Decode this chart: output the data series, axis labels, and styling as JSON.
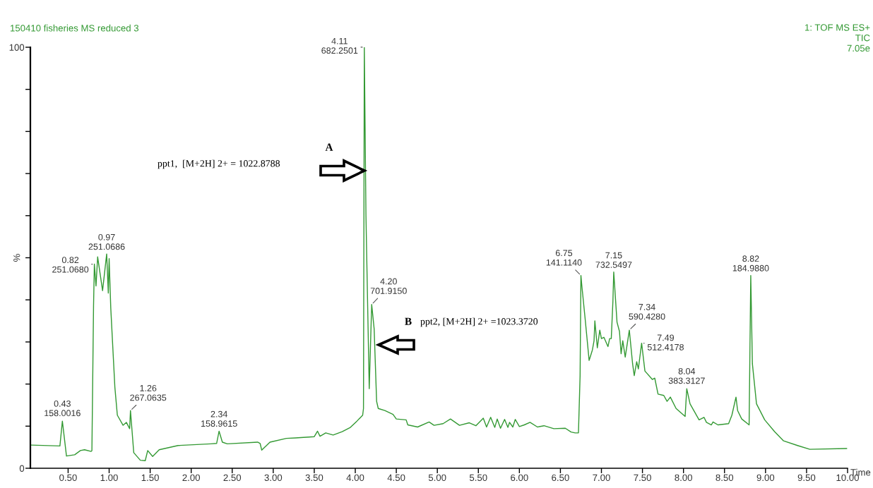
{
  "chart_data": {
    "type": "line",
    "title": "150410 fisheries MS reduced 3",
    "xlabel": "Time",
    "ylabel": "%",
    "x": [
      0.05,
      0.4,
      0.43,
      0.48,
      0.58,
      0.65,
      0.7,
      0.78,
      0.79,
      0.81,
      0.82,
      0.84,
      0.86,
      0.92,
      0.97,
      0.99,
      1.0,
      1.02,
      1.07,
      1.1,
      1.17,
      1.21,
      1.25,
      1.26,
      1.3,
      1.38,
      1.44,
      1.47,
      1.53,
      1.61,
      1.84,
      2.24,
      2.31,
      2.34,
      2.38,
      2.44,
      2.81,
      2.84,
      2.86,
      2.96,
      3.16,
      3.27,
      3.5,
      3.54,
      3.57,
      3.64,
      3.73,
      3.84,
      3.94,
      4.02,
      4.09,
      4.1,
      4.11,
      4.13,
      4.17,
      4.2,
      4.23,
      4.26,
      4.28,
      4.36,
      4.46,
      4.5,
      4.62,
      4.64,
      4.76,
      4.9,
      4.96,
      5.07,
      5.16,
      5.27,
      5.39,
      5.47,
      5.56,
      5.6,
      5.65,
      5.7,
      5.73,
      5.77,
      5.82,
      5.86,
      5.88,
      5.92,
      5.95,
      6.0,
      6.06,
      6.13,
      6.22,
      6.3,
      6.42,
      6.56,
      6.63,
      6.68,
      6.72,
      6.74,
      6.75,
      6.76,
      6.8,
      6.85,
      6.89,
      6.91,
      6.92,
      6.95,
      6.98,
      7.0,
      7.03,
      7.08,
      7.1,
      7.12,
      7.14,
      7.15,
      7.19,
      7.22,
      7.24,
      7.26,
      7.29,
      7.34,
      7.38,
      7.4,
      7.43,
      7.45,
      7.49,
      7.53,
      7.62,
      7.65,
      7.69,
      7.76,
      7.8,
      7.84,
      7.91,
      8.02,
      8.04,
      8.08,
      8.19,
      8.25,
      8.28,
      8.34,
      8.36,
      8.42,
      8.55,
      8.59,
      8.64,
      8.66,
      8.71,
      8.8,
      8.81,
      8.82,
      8.84,
      8.89,
      8.99,
      9.11,
      9.22,
      9.39,
      9.54,
      9.99
    ],
    "series": [
      {
        "color": "#339933",
        "values": [
          5.5,
          5.3,
          11.2,
          2.9,
          3.2,
          4.2,
          4.4,
          4.0,
          4.2,
          38.6,
          48.5,
          43.3,
          50.2,
          42.2,
          50.9,
          41.6,
          49.8,
          38.0,
          19.2,
          12.6,
          10.2,
          10.9,
          9.4,
          13.7,
          3.7,
          1.9,
          1.8,
          4.2,
          2.8,
          4.4,
          5.4,
          5.8,
          5.9,
          8.8,
          6.2,
          5.8,
          6.2,
          5.9,
          4.3,
          6.2,
          7.1,
          7.2,
          7.5,
          8.8,
          7.6,
          8.4,
          7.9,
          8.7,
          9.7,
          11.2,
          12.6,
          14.2,
          100,
          60,
          18.9,
          38.9,
          33.1,
          15.9,
          14.2,
          13.7,
          12.8,
          11.7,
          11.5,
          10.3,
          9.8,
          11.0,
          10.2,
          10.6,
          11.7,
          10.2,
          10.8,
          10.1,
          11.9,
          9.8,
          12.1,
          9.7,
          11.7,
          9.5,
          11.6,
          9.7,
          10.9,
          9.8,
          11.6,
          9.9,
          10.3,
          10.9,
          9.8,
          10.1,
          9.4,
          9.5,
          8.6,
          8.4,
          8.4,
          22.0,
          45.8,
          43.6,
          35.8,
          25.6,
          28.1,
          30.3,
          35.0,
          28.6,
          32.8,
          30.8,
          31.1,
          28.9,
          30.8,
          30.8,
          39.7,
          46.6,
          34.7,
          32.5,
          27.2,
          30.3,
          26.4,
          32.8,
          24.8,
          22.0,
          25.3,
          23.6,
          29.7,
          23.1,
          21.1,
          21.4,
          17.6,
          17.3,
          15.9,
          16.9,
          14.2,
          12.3,
          18.9,
          15.3,
          11.5,
          12.1,
          10.9,
          10.3,
          11.0,
          10.3,
          10.6,
          12.6,
          16.9,
          13.7,
          11.7,
          10.3,
          28.1,
          45.8,
          24.8,
          15.3,
          11.5,
          8.7,
          6.5,
          5.4,
          4.5,
          4.7
        ]
      }
    ],
    "xlim": [
      0.04,
      10.0
    ],
    "ylim": [
      0,
      100
    ],
    "xticks": [
      {
        "value": 0.5,
        "label": "0.50"
      },
      {
        "value": 1.0,
        "label": "1.00"
      },
      {
        "value": 1.5,
        "label": "1.50"
      },
      {
        "value": 2.0,
        "label": "2.00"
      },
      {
        "value": 2.5,
        "label": "2.50"
      },
      {
        "value": 3.0,
        "label": "3.00"
      },
      {
        "value": 3.5,
        "label": "3.50"
      },
      {
        "value": 4.0,
        "label": "4.00"
      },
      {
        "value": 4.5,
        "label": "4.50"
      },
      {
        "value": 5.0,
        "label": "5.00"
      },
      {
        "value": 5.5,
        "label": "5.50"
      },
      {
        "value": 6.0,
        "label": "6.00"
      },
      {
        "value": 6.5,
        "label": "6.50"
      },
      {
        "value": 7.0,
        "label": "7.00"
      },
      {
        "value": 7.5,
        "label": "7.50"
      },
      {
        "value": 8.0,
        "label": "8.00"
      },
      {
        "value": 8.5,
        "label": "8.50"
      },
      {
        "value": 9.0,
        "label": "9.00"
      },
      {
        "value": 9.5,
        "label": "9.50"
      },
      {
        "value": 10.0,
        "label": "10.00"
      }
    ],
    "yticks": [
      0,
      {
        "value": 10,
        "label": null
      },
      {
        "value": 20,
        "label": null
      },
      {
        "value": 30,
        "label": null
      },
      {
        "value": 40,
        "label": null
      },
      {
        "value": 50,
        "label": null
      },
      {
        "value": 60,
        "label": null
      },
      {
        "value": 70,
        "label": null
      },
      {
        "value": 80,
        "label": null
      },
      {
        "value": 90,
        "label": null
      },
      100
    ],
    "annotations": [
      "1: TOF MS ES+\nTIC\n7.05e",
      "ppt1,  [M+2H] 2+ = 1022.8788",
      "ppt2, [M+2H] 2+ =1023.3720",
      "A",
      "B",
      {
        "text": "0.43\n158.0016",
        "x": 0.43,
        "y": 11.2
      },
      {
        "text": "0.82\n251.0680",
        "x": 0.82,
        "y": 48.5
      },
      {
        "text": "0.97\n251.0686",
        "x": 0.97,
        "y": 50.9
      },
      {
        "text": "1.26\n267.0635",
        "x": 1.26,
        "y": 13.7
      },
      {
        "text": "2.34\n158.9615",
        "x": 2.34,
        "y": 8.8
      },
      {
        "text": "4.11\n682.2501",
        "x": 4.11,
        "y": 100
      },
      {
        "text": "4.20\n701.9150",
        "x": 4.2,
        "y": 38.9
      },
      {
        "text": "6.75\n141.1140",
        "x": 6.75,
        "y": 45.8
      },
      {
        "text": "7.15\n732.5497",
        "x": 7.15,
        "y": 46.6
      },
      {
        "text": "7.34\n590.4280",
        "x": 7.34,
        "y": 32.8
      },
      {
        "text": "7.49\n512.4178",
        "x": 7.49,
        "y": 29.7
      },
      {
        "text": "8.04\n383.3127",
        "x": 8.04,
        "y": 18.9
      },
      {
        "text": "8.82\n184.9880",
        "x": 8.82,
        "y": 45.8
      }
    ]
  }
}
